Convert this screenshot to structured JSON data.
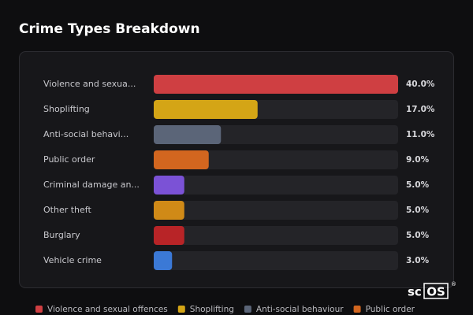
{
  "chart_data": {
    "type": "hbar",
    "title": "Crime Types Breakdown",
    "categories": [
      "Violence and sexua...",
      "Shoplifting",
      "Anti-social behavi...",
      "Public order",
      "Criminal damage an...",
      "Other theft",
      "Burglary",
      "Vehicle crime"
    ],
    "values": [
      40,
      17,
      11,
      9,
      5,
      5,
      5,
      3
    ],
    "value_labels": [
      "40.0%",
      "17.0%",
      "11.0%",
      "9.0%",
      "5.0%",
      "5.0%",
      "5.0%",
      "3.0%"
    ],
    "colors": [
      "#cf3f42",
      "#d4a516",
      "#5b6578",
      "#d2661f",
      "#7b52d6",
      "#d08a17",
      "#b82427",
      "#3b79d6"
    ],
    "legend": [
      {
        "name": "Violence and sexual offences",
        "color": "#cf3f42"
      },
      {
        "name": "Shoplifting",
        "color": "#d4a516"
      },
      {
        "name": "Anti-social behaviour",
        "color": "#5b6578"
      },
      {
        "name": "Public order",
        "color": "#d2661f"
      }
    ]
  },
  "logo": {
    "plain": "sc",
    "boxed": "OS",
    "mark": "®"
  }
}
